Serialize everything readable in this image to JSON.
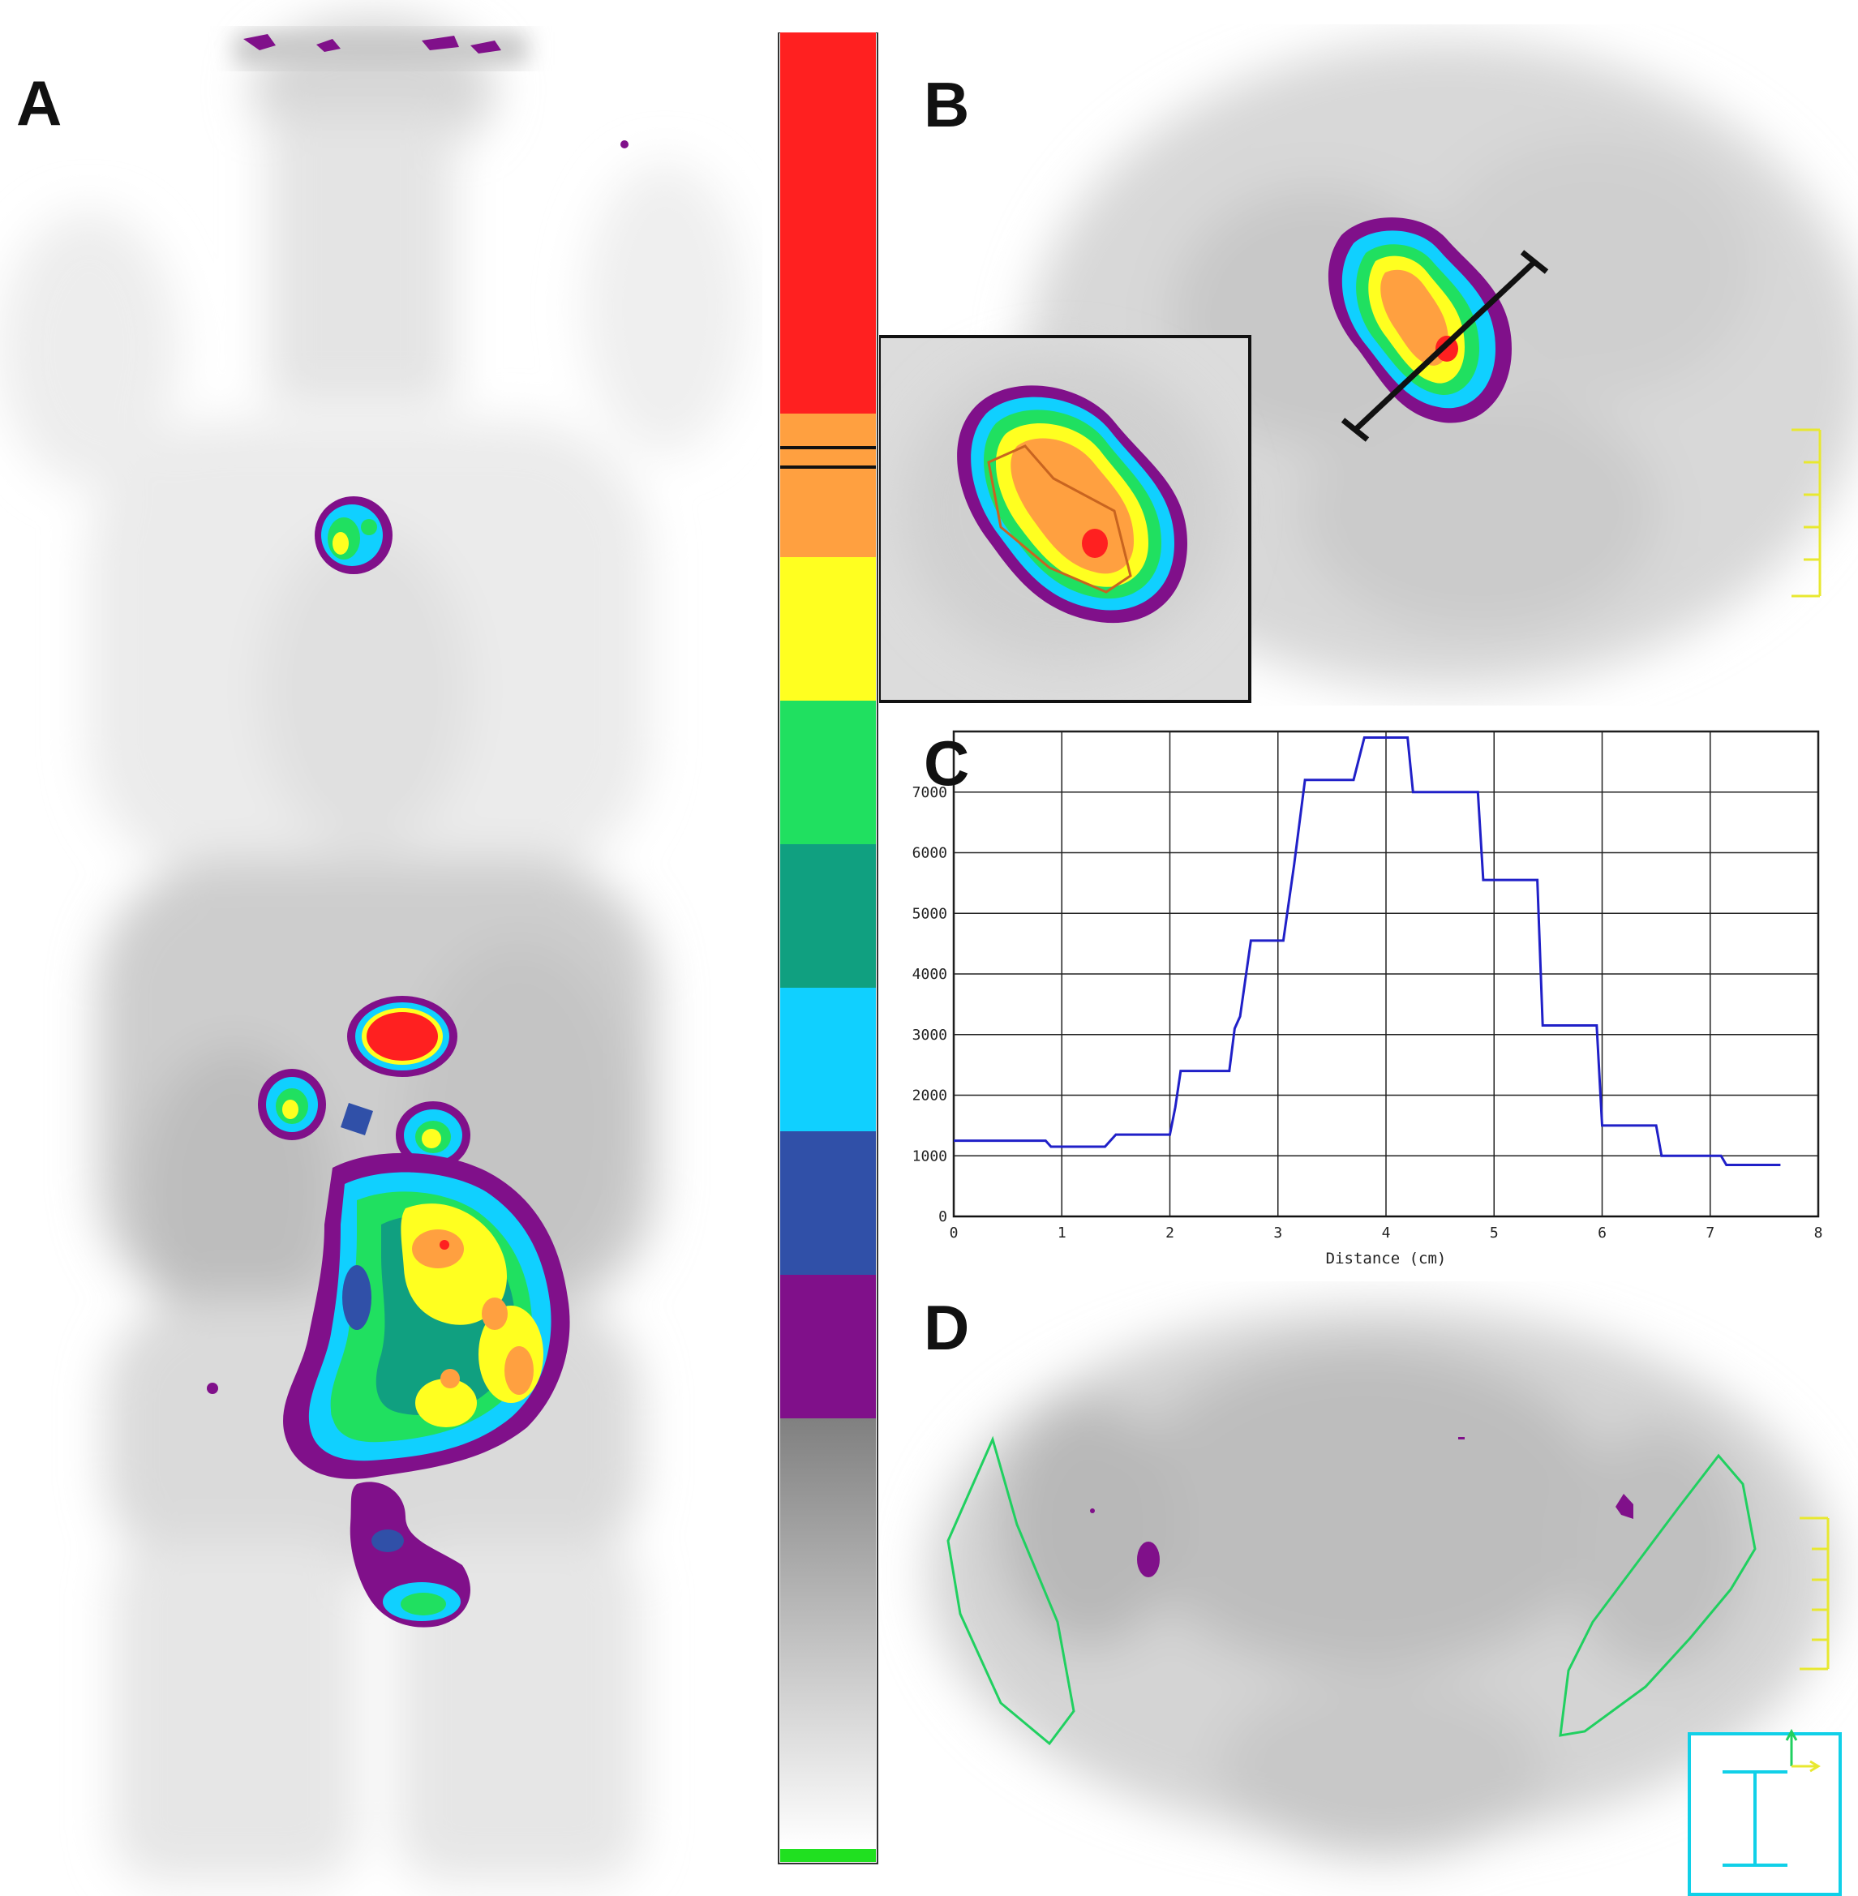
{
  "panels": {
    "a": {
      "letter": "A"
    },
    "b": {
      "letter": "B"
    },
    "c": {
      "letter": "C"
    },
    "d": {
      "letter": "D"
    }
  },
  "colorbar": {
    "colors": [
      "#ff2020",
      "#ffa040",
      "#ffff20",
      "#20e060",
      "#10a080",
      "#10d0ff",
      "#3050a8",
      "#80108a"
    ],
    "gradient_top": "#808080",
    "gradient_bottom": "#ffffff",
    "bottom_marker_color": "#20e020"
  },
  "chart_data": {
    "type": "line",
    "title": "",
    "xlabel": "Distance (cm)",
    "ylabel": "",
    "xlim": [
      0,
      8
    ],
    "ylim": [
      0,
      8000
    ],
    "x_ticks": [
      0,
      1,
      2,
      3,
      4,
      5,
      6,
      7,
      8
    ],
    "y_ticks": [
      0,
      1000,
      2000,
      3000,
      4000,
      5000,
      6000,
      7000
    ],
    "grid": true,
    "line_color": "#2020c8",
    "x": [
      0,
      0.85,
      0.9,
      1.4,
      1.5,
      2.0,
      2.05,
      2.1,
      2.55,
      2.6,
      2.65,
      2.75,
      3.05,
      3.15,
      3.25,
      3.7,
      3.8,
      4.2,
      4.25,
      4.85,
      4.9,
      5.4,
      5.45,
      5.95,
      6.0,
      6.5,
      6.55,
      7.1,
      7.15,
      7.65
    ],
    "y": [
      1250,
      1250,
      1150,
      1150,
      1350,
      1350,
      1800,
      2400,
      2400,
      3100,
      3300,
      4550,
      4550,
      5800,
      7200,
      7200,
      7900,
      7900,
      7000,
      7000,
      5550,
      5550,
      3150,
      3150,
      1500,
      1500,
      1000,
      1000,
      850,
      850
    ]
  }
}
